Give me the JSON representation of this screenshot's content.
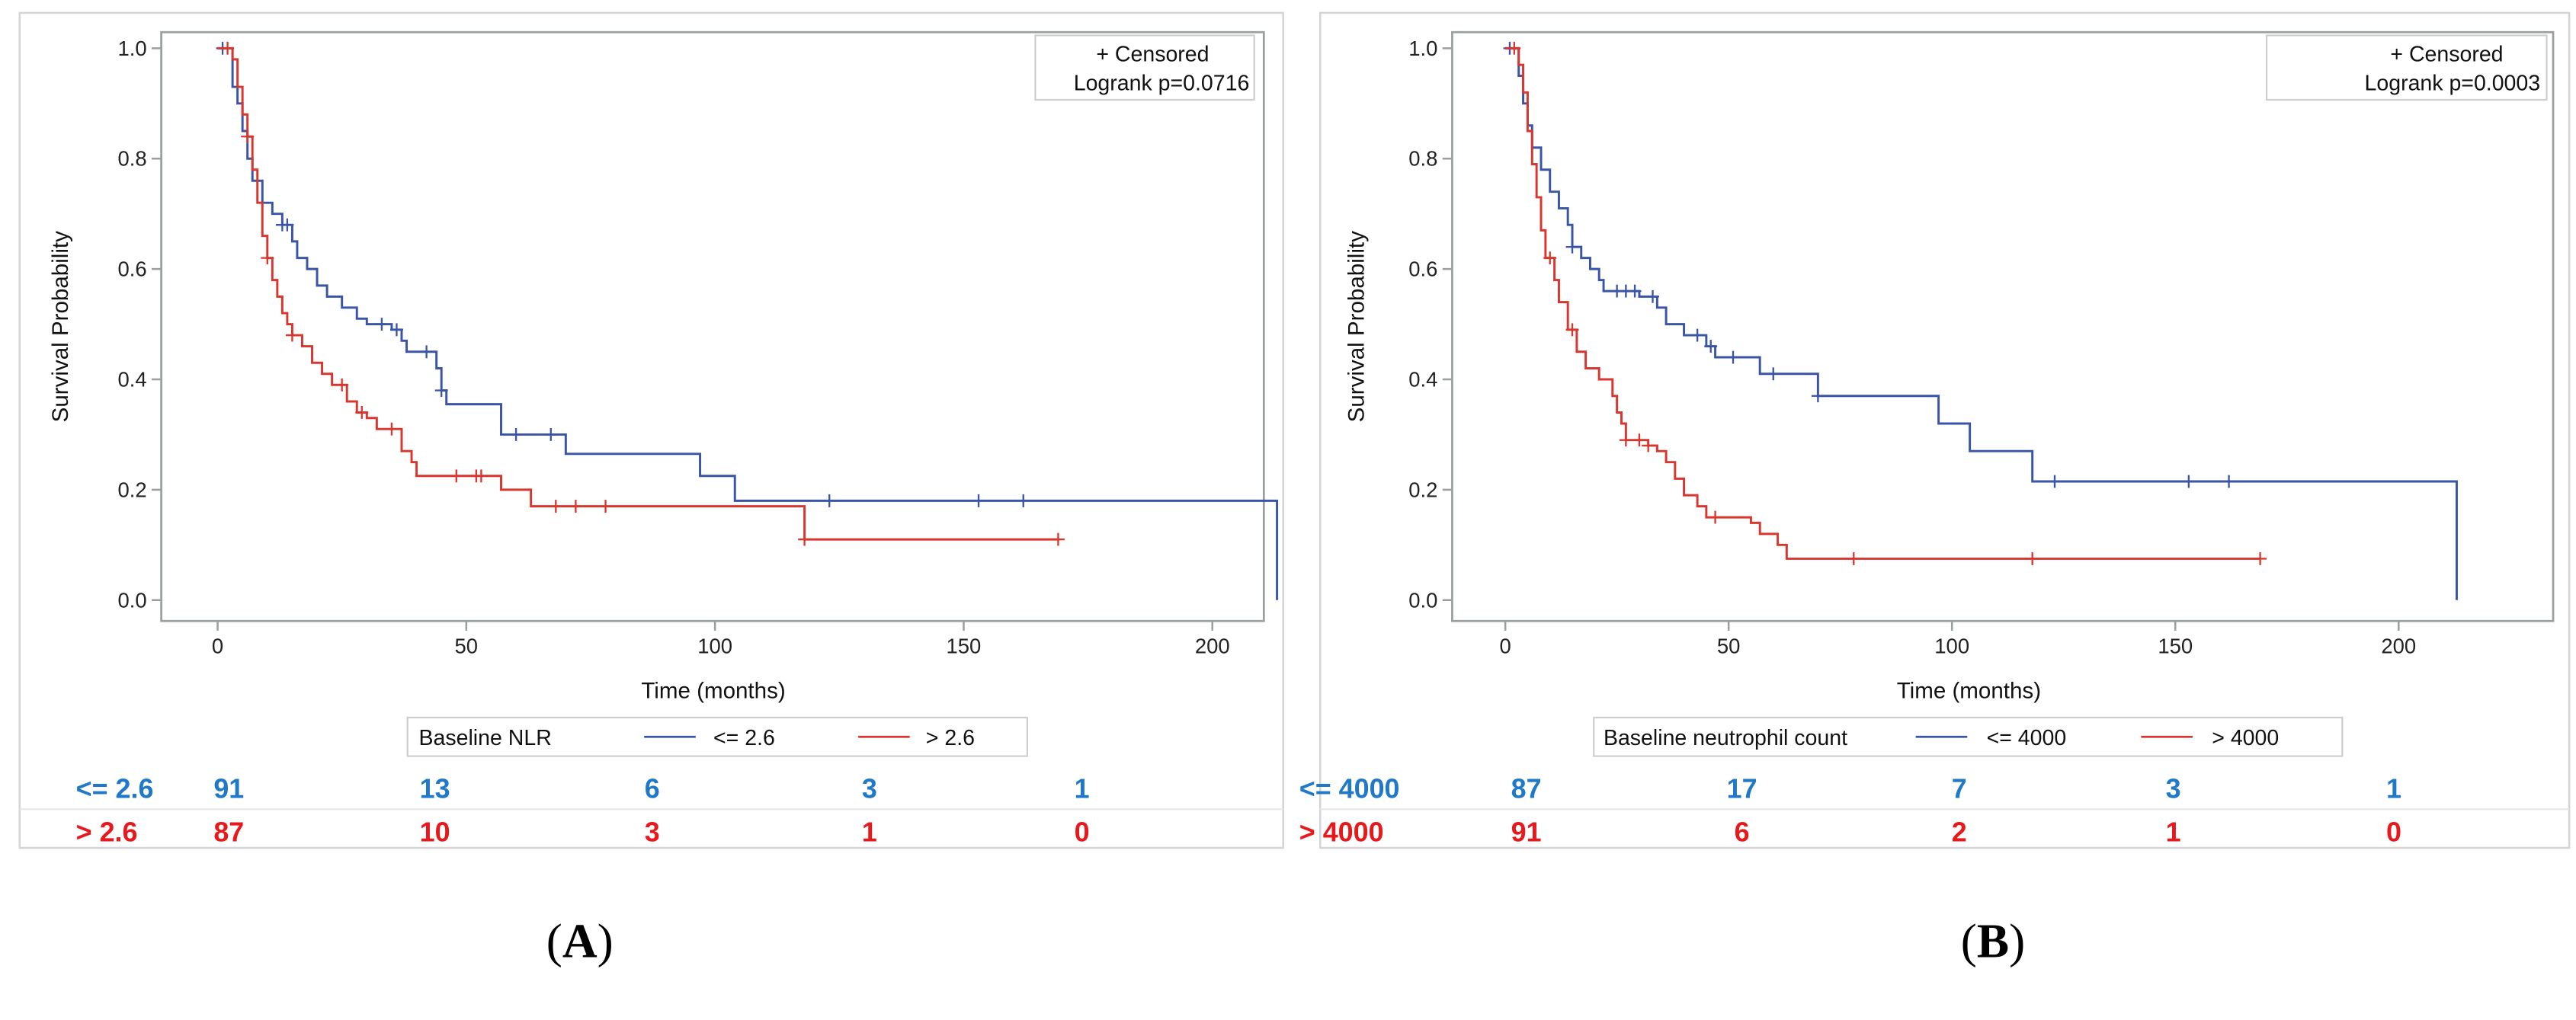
{
  "chart_data": [
    {
      "type": "line",
      "subtype": "kaplan-meier",
      "panel_label": "A",
      "xlabel": "Time (months)",
      "ylabel": "Survival Probability",
      "xlim": [
        -10,
        220
      ],
      "ylim": [
        0,
        1
      ],
      "xticks": [
        0,
        50,
        100,
        150,
        200
      ],
      "yticks": [
        "0.0",
        "0.2",
        "0.4",
        "0.6",
        "0.8",
        "1.0"
      ],
      "annotation": {
        "censored": "+ Censored",
        "logrank": "Logrank p=0.0716"
      },
      "legend": {
        "title": "Baseline NLR",
        "placement": "bottom"
      },
      "series": [
        {
          "name": "<= 2.6",
          "color": "#3a55a8",
          "steps": [
            [
              0,
              1.0
            ],
            [
              3,
              0.93
            ],
            [
              4,
              0.9
            ],
            [
              5,
              0.85
            ],
            [
              6,
              0.8
            ],
            [
              7,
              0.76
            ],
            [
              9,
              0.72
            ],
            [
              11,
              0.7
            ],
            [
              13,
              0.68
            ],
            [
              15,
              0.65
            ],
            [
              16,
              0.62
            ],
            [
              18,
              0.6
            ],
            [
              20,
              0.57
            ],
            [
              22,
              0.55
            ],
            [
              25,
              0.53
            ],
            [
              28,
              0.51
            ],
            [
              30,
              0.5
            ],
            [
              35,
              0.49
            ],
            [
              37,
              0.47
            ],
            [
              38,
              0.45
            ],
            [
              44,
              0.42
            ],
            [
              45,
              0.38
            ],
            [
              46,
              0.355
            ],
            [
              57,
              0.3
            ],
            [
              70,
              0.265
            ],
            [
              97,
              0.225
            ],
            [
              104,
              0.18
            ],
            [
              213,
              0.0
            ]
          ],
          "end": 213,
          "censored": [
            1,
            13,
            14,
            33,
            36,
            42,
            45,
            60,
            67,
            123,
            153,
            162
          ]
        },
        {
          "name": "> 2.6",
          "color": "#d7372f",
          "steps": [
            [
              0,
              1.0
            ],
            [
              3,
              0.98
            ],
            [
              4,
              0.93
            ],
            [
              5,
              0.88
            ],
            [
              6,
              0.84
            ],
            [
              7,
              0.78
            ],
            [
              8,
              0.72
            ],
            [
              9,
              0.66
            ],
            [
              10,
              0.62
            ],
            [
              11,
              0.58
            ],
            [
              12,
              0.55
            ],
            [
              13,
              0.52
            ],
            [
              14,
              0.5
            ],
            [
              15,
              0.48
            ],
            [
              17,
              0.46
            ],
            [
              19,
              0.43
            ],
            [
              21,
              0.41
            ],
            [
              23,
              0.39
            ],
            [
              26,
              0.36
            ],
            [
              28,
              0.34
            ],
            [
              30,
              0.33
            ],
            [
              32,
              0.31
            ],
            [
              37,
              0.27
            ],
            [
              39,
              0.25
            ],
            [
              40,
              0.225
            ],
            [
              57,
              0.2
            ],
            [
              63,
              0.17
            ],
            [
              118,
              0.11
            ]
          ],
          "end": 169,
          "censored": [
            2,
            6,
            10,
            15,
            25,
            29,
            35,
            48,
            52,
            53,
            68,
            72,
            78,
            118,
            169
          ]
        }
      ],
      "risk_table": {
        "times": [
          0,
          50,
          100,
          150,
          200
        ],
        "rows": [
          {
            "label": "<= 2.6",
            "color": "#1f78c8",
            "values": [
              "91",
              "13",
              "6",
              "3",
              "1"
            ]
          },
          {
            "label": "> 2.6",
            "color": "#e8191c",
            "values": [
              "87",
              "10",
              "3",
              "1",
              "0"
            ]
          }
        ]
      }
    },
    {
      "type": "line",
      "subtype": "kaplan-meier",
      "panel_label": "B",
      "xlabel": "Time (months)",
      "ylabel": "Survival Probability",
      "xlim": [
        -10,
        220
      ],
      "ylim": [
        0,
        1
      ],
      "xticks": [
        0,
        50,
        100,
        150,
        200
      ],
      "yticks": [
        "0.0",
        "0.2",
        "0.4",
        "0.6",
        "0.8",
        "1.0"
      ],
      "annotation": {
        "censored": "+ Censored",
        "logrank": "Logrank p=0.0003"
      },
      "legend": {
        "title": "Baseline neutrophil count",
        "placement": "bottom"
      },
      "series": [
        {
          "name": "<= 4000",
          "color": "#3a55a8",
          "steps": [
            [
              0,
              1.0
            ],
            [
              3,
              0.95
            ],
            [
              4,
              0.9
            ],
            [
              5,
              0.86
            ],
            [
              6,
              0.82
            ],
            [
              8,
              0.78
            ],
            [
              10,
              0.74
            ],
            [
              12,
              0.71
            ],
            [
              14,
              0.68
            ],
            [
              15,
              0.64
            ],
            [
              17,
              0.62
            ],
            [
              19,
              0.6
            ],
            [
              21,
              0.58
            ],
            [
              22,
              0.56
            ],
            [
              30,
              0.55
            ],
            [
              34,
              0.53
            ],
            [
              36,
              0.5
            ],
            [
              40,
              0.48
            ],
            [
              45,
              0.46
            ],
            [
              47,
              0.44
            ],
            [
              57,
              0.41
            ],
            [
              70,
              0.37
            ],
            [
              97,
              0.32
            ],
            [
              104,
              0.27
            ],
            [
              118,
              0.215
            ],
            [
              213,
              0.0
            ]
          ],
          "end": 213,
          "censored": [
            1,
            15,
            25,
            27,
            29,
            33,
            43,
            46,
            51,
            60,
            70,
            123,
            153,
            162
          ]
        },
        {
          "name": "> 4000",
          "color": "#d7372f",
          "steps": [
            [
              0,
              1.0
            ],
            [
              3,
              0.97
            ],
            [
              4,
              0.92
            ],
            [
              5,
              0.85
            ],
            [
              6,
              0.79
            ],
            [
              7,
              0.73
            ],
            [
              8,
              0.67
            ],
            [
              9,
              0.62
            ],
            [
              11,
              0.58
            ],
            [
              12,
              0.54
            ],
            [
              14,
              0.49
            ],
            [
              16,
              0.45
            ],
            [
              18,
              0.42
            ],
            [
              21,
              0.4
            ],
            [
              24,
              0.37
            ],
            [
              25,
              0.34
            ],
            [
              26,
              0.32
            ],
            [
              27,
              0.29
            ],
            [
              32,
              0.28
            ],
            [
              34,
              0.27
            ],
            [
              36,
              0.25
            ],
            [
              38,
              0.22
            ],
            [
              40,
              0.19
            ],
            [
              43,
              0.17
            ],
            [
              45,
              0.15
            ],
            [
              55,
              0.14
            ],
            [
              57,
              0.12
            ],
            [
              61,
              0.1
            ],
            [
              63,
              0.075
            ]
          ],
          "end": 169,
          "censored": [
            2,
            10,
            15,
            27,
            30,
            32,
            47,
            78,
            118,
            169
          ]
        }
      ],
      "risk_table": {
        "times": [
          0,
          50,
          100,
          150,
          200
        ],
        "rows": [
          {
            "label": "<= 4000",
            "color": "#1f78c8",
            "values": [
              "87",
              "17",
              "7",
              "3",
              "1"
            ]
          },
          {
            "label": "> 4000",
            "color": "#e8191c",
            "values": [
              "91",
              "6",
              "2",
              "1",
              "0"
            ]
          }
        ]
      }
    }
  ]
}
